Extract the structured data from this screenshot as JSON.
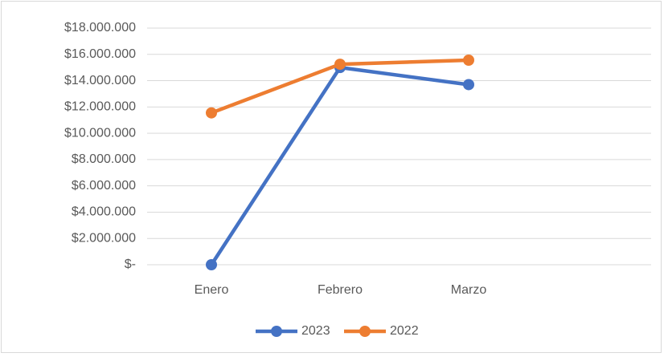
{
  "chart_data": {
    "type": "line",
    "categories": [
      "Enero",
      "Febrero",
      "Marzo",
      null
    ],
    "series": [
      {
        "name": "2023",
        "color": "#4472c4",
        "values": [
          0,
          15000000,
          13700000,
          null
        ]
      },
      {
        "name": "2022",
        "color": "#ed7d31",
        "values": [
          11550000,
          15250000,
          15560000,
          null
        ]
      }
    ],
    "ylim": [
      0,
      18000000
    ],
    "yticks": [
      {
        "value": 0,
        "label": "$-"
      },
      {
        "value": 2000000,
        "label": "$2.000.000"
      },
      {
        "value": 4000000,
        "label": "$4.000.000"
      },
      {
        "value": 6000000,
        "label": "$6.000.000"
      },
      {
        "value": 8000000,
        "label": "$8.000.000"
      },
      {
        "value": 10000000,
        "label": "$10.000.000"
      },
      {
        "value": 12000000,
        "label": "$12.000.000"
      },
      {
        "value": 14000000,
        "label": "$14.000.000"
      },
      {
        "value": 16000000,
        "label": "$16.000.000"
      },
      {
        "value": 18000000,
        "label": "$18.000.000"
      }
    ],
    "grid": true,
    "legend": "bottom"
  }
}
